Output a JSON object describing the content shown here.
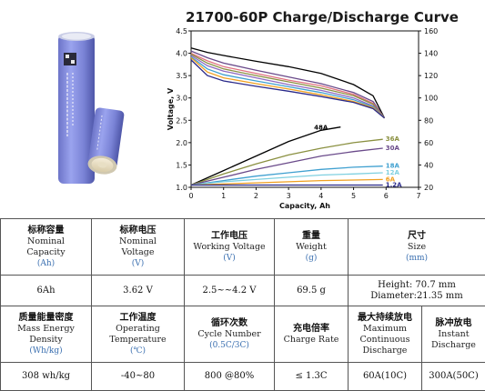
{
  "chart_data": {
    "type": "line",
    "title": "21700-60P Charge/Discharge Curve",
    "xlabel": "Capacity, Ah",
    "ylabel": "Voltage, V",
    "xlim": [
      0,
      7
    ],
    "ylim": [
      1.0,
      4.5
    ],
    "y2lim": [
      20,
      160
    ],
    "x_ticks": [
      "0",
      "1",
      "2",
      "3",
      "4",
      "5",
      "6",
      "7"
    ],
    "y_ticks": [
      "1.0",
      "1.5",
      "2.0",
      "2.5",
      "3.0",
      "3.5",
      "4.0",
      "4.5"
    ],
    "y2_ticks": [
      "20",
      "40",
      "60",
      "80",
      "100",
      "120",
      "140",
      "160"
    ],
    "grid": false,
    "voltage_series": [
      {
        "color": "#000000",
        "points": [
          [
            0,
            4.12
          ],
          [
            0.5,
            4.02
          ],
          [
            1,
            3.95
          ],
          [
            2,
            3.82
          ],
          [
            3,
            3.7
          ],
          [
            4,
            3.55
          ],
          [
            5,
            3.3
          ],
          [
            5.6,
            3.05
          ],
          [
            5.95,
            2.55
          ]
        ]
      },
      {
        "color": "#6a4a8a",
        "points": [
          [
            0,
            4.05
          ],
          [
            0.5,
            3.9
          ],
          [
            1,
            3.78
          ],
          [
            2,
            3.62
          ],
          [
            3,
            3.47
          ],
          [
            4,
            3.32
          ],
          [
            5,
            3.12
          ],
          [
            5.6,
            2.92
          ],
          [
            5.95,
            2.55
          ]
        ]
      },
      {
        "color": "#e07080",
        "points": [
          [
            0,
            4.0
          ],
          [
            0.5,
            3.83
          ],
          [
            1,
            3.7
          ],
          [
            2,
            3.55
          ],
          [
            3,
            3.4
          ],
          [
            4,
            3.27
          ],
          [
            5,
            3.08
          ],
          [
            5.6,
            2.88
          ],
          [
            5.95,
            2.55
          ]
        ]
      },
      {
        "color": "#8a9040",
        "points": [
          [
            0,
            3.98
          ],
          [
            0.5,
            3.78
          ],
          [
            1,
            3.65
          ],
          [
            2,
            3.5
          ],
          [
            3,
            3.36
          ],
          [
            4,
            3.22
          ],
          [
            5,
            3.05
          ],
          [
            5.6,
            2.86
          ],
          [
            5.95,
            2.55
          ]
        ]
      },
      {
        "color": "#8e6ac0",
        "points": [
          [
            0,
            3.95
          ],
          [
            0.5,
            3.72
          ],
          [
            1,
            3.6
          ],
          [
            2,
            3.45
          ],
          [
            3,
            3.3
          ],
          [
            4,
            3.17
          ],
          [
            5,
            3.0
          ],
          [
            5.6,
            2.82
          ],
          [
            5.95,
            2.55
          ]
        ]
      },
      {
        "color": "#3fa0d0",
        "points": [
          [
            0,
            3.92
          ],
          [
            0.5,
            3.65
          ],
          [
            1,
            3.52
          ],
          [
            2,
            3.38
          ],
          [
            3,
            3.25
          ],
          [
            4,
            3.12
          ],
          [
            5,
            2.96
          ],
          [
            5.6,
            2.8
          ],
          [
            5.95,
            2.55
          ]
        ]
      },
      {
        "color": "#f0a020",
        "points": [
          [
            0,
            3.9
          ],
          [
            0.5,
            3.58
          ],
          [
            1,
            3.45
          ],
          [
            2,
            3.32
          ],
          [
            3,
            3.2
          ],
          [
            4,
            3.07
          ],
          [
            5,
            2.92
          ],
          [
            5.6,
            2.78
          ],
          [
            5.95,
            2.55
          ]
        ]
      },
      {
        "color": "#2a2a8a",
        "points": [
          [
            0,
            3.85
          ],
          [
            0.5,
            3.5
          ],
          [
            1,
            3.38
          ],
          [
            2,
            3.26
          ],
          [
            3,
            3.15
          ],
          [
            4,
            3.03
          ],
          [
            5,
            2.9
          ],
          [
            5.6,
            2.76
          ],
          [
            5.95,
            2.55
          ]
        ]
      }
    ],
    "temperature_series": [
      {
        "name": "48A",
        "color": "#000000",
        "points": [
          [
            0,
            22
          ],
          [
            1,
            35
          ],
          [
            2,
            48
          ],
          [
            3,
            61
          ],
          [
            4,
            71
          ],
          [
            4.6,
            74
          ]
        ]
      },
      {
        "name": "36A",
        "color": "#8a9040",
        "points": [
          [
            0,
            22
          ],
          [
            1,
            32
          ],
          [
            2,
            41
          ],
          [
            3,
            49
          ],
          [
            4,
            55
          ],
          [
            5,
            60
          ],
          [
            5.9,
            63
          ]
        ]
      },
      {
        "name": "30A",
        "color": "#6a4a8a",
        "points": [
          [
            0,
            22
          ],
          [
            1,
            29
          ],
          [
            2,
            36
          ],
          [
            3,
            42
          ],
          [
            4,
            48
          ],
          [
            5,
            52
          ],
          [
            5.9,
            55
          ]
        ]
      },
      {
        "name": "18A",
        "color": "#3fa0d0",
        "points": [
          [
            0,
            22
          ],
          [
            1,
            26
          ],
          [
            2,
            30
          ],
          [
            3,
            33
          ],
          [
            4,
            36
          ],
          [
            5,
            38
          ],
          [
            5.9,
            39
          ]
        ]
      },
      {
        "name": "12A",
        "color": "#7fd0e0",
        "points": [
          [
            0,
            22
          ],
          [
            1,
            25
          ],
          [
            2,
            27
          ],
          [
            3,
            29
          ],
          [
            4,
            31
          ],
          [
            5,
            32
          ],
          [
            5.9,
            33
          ]
        ]
      },
      {
        "name": "6A",
        "color": "#f0a020",
        "points": [
          [
            0,
            22
          ],
          [
            1,
            23
          ],
          [
            2,
            24
          ],
          [
            3,
            25
          ],
          [
            4,
            26
          ],
          [
            5,
            26.5
          ],
          [
            5.9,
            27
          ]
        ]
      },
      {
        "name": "1.2A",
        "color": "#2a2a8a",
        "points": [
          [
            0,
            22
          ],
          [
            2,
            22
          ],
          [
            4,
            22
          ],
          [
            5.9,
            22
          ]
        ]
      }
    ]
  },
  "table": {
    "row1": [
      {
        "cn": "标称容量",
        "en": [
          "Nominal",
          "Capacity"
        ],
        "unit": "(Ah)"
      },
      {
        "cn": "标称电压",
        "en": [
          "Nominal",
          "Voltage"
        ],
        "unit": "(V)"
      },
      {
        "cn": "工作电压",
        "en": [
          "Working Voltage"
        ],
        "unit": "(V)"
      },
      {
        "cn": "重量",
        "en": [
          "Weight"
        ],
        "unit": "(g)"
      },
      {
        "cn": "尺寸",
        "en": [
          "Size"
        ],
        "unit": "(mm)"
      }
    ],
    "row2": [
      "6Ah",
      "3.62 V",
      "2.5~~4.2 V",
      "69.5 g",
      "Height: 70.7 mm",
      "Diameter:21.35 mm"
    ],
    "row3": [
      {
        "cn": "质量能量密度",
        "en": [
          "Mass Energy",
          "Density"
        ],
        "unit": "(Wh/kg)"
      },
      {
        "cn": "工作温度",
        "en": [
          "Operating",
          "Temperature"
        ],
        "unit": "(℃)"
      },
      {
        "cn": "循环次数",
        "en": [
          "Cycle Number"
        ],
        "unit": "(0.5C/3C)"
      },
      {
        "cn": "充电倍率",
        "en": [
          "Charge Rate"
        ],
        "unit": ""
      },
      {
        "cn": "最大持续放电",
        "en": [
          "Maximum",
          "Continuous",
          "Discharge"
        ],
        "unit": ""
      },
      {
        "cn": "脉冲放电",
        "en": [
          "Instant",
          "Discharge"
        ],
        "unit": ""
      }
    ],
    "row4": [
      "308 wh/kg",
      "-40~80",
      "800 @80%",
      "≤ 1.3C",
      "60A(10C)",
      "300A(50C)"
    ]
  }
}
